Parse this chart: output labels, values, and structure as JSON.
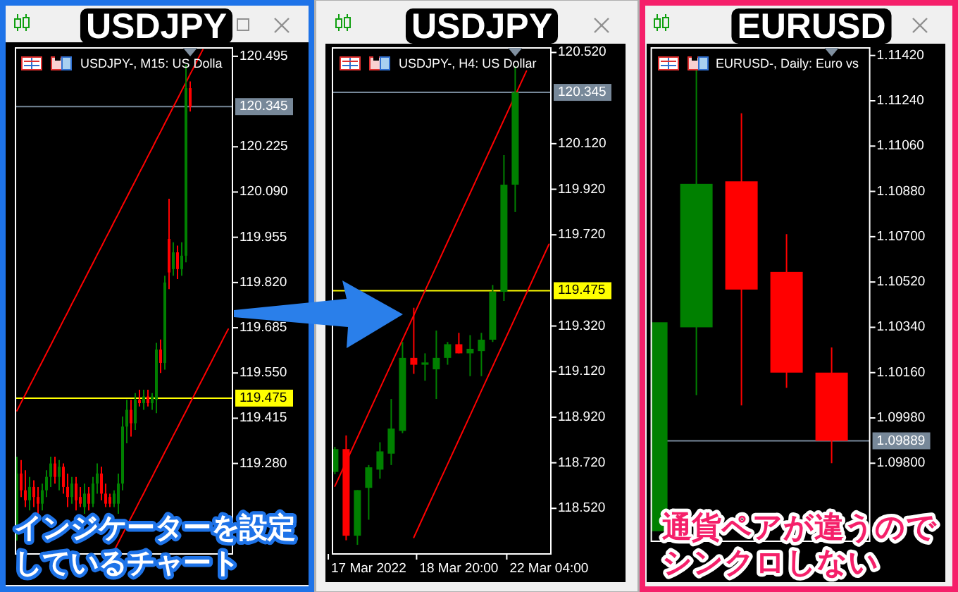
{
  "chart_data": [
    {
      "type": "candlestick",
      "title": "USDJPY",
      "subtitle": "USDJPY-, M15: US Dolla",
      "categories": [
        null,
        null,
        null,
        null,
        null,
        null,
        null,
        null,
        null,
        null,
        null,
        null,
        null,
        null,
        null,
        null,
        null,
        null,
        null,
        null,
        null,
        null,
        null,
        null,
        null,
        null,
        null,
        null,
        null,
        null,
        null,
        null,
        null,
        null,
        null,
        null,
        null,
        null,
        null,
        null,
        null,
        null,
        null,
        null,
        null,
        null,
        null,
        null,
        null,
        null,
        null
      ],
      "ohlc": [
        [
          119.1,
          119.3,
          119.05,
          119.25
        ],
        [
          119.25,
          119.29,
          119.18,
          119.2
        ],
        [
          119.2,
          119.26,
          119.15,
          119.17
        ],
        [
          119.17,
          119.24,
          119.14,
          119.21
        ],
        [
          119.21,
          119.23,
          119.15,
          119.18
        ],
        [
          119.18,
          119.21,
          119.13,
          119.16
        ],
        [
          119.16,
          119.22,
          119.14,
          119.2
        ],
        [
          119.2,
          119.26,
          119.18,
          119.24
        ],
        [
          119.24,
          119.3,
          119.21,
          119.28
        ],
        [
          119.28,
          119.3,
          119.22,
          119.24
        ],
        [
          119.24,
          119.29,
          119.2,
          119.27
        ],
        [
          119.27,
          119.28,
          119.19,
          119.21
        ],
        [
          119.21,
          119.25,
          119.15,
          119.18
        ],
        [
          119.18,
          119.24,
          119.16,
          119.22
        ],
        [
          119.22,
          119.24,
          119.14,
          119.17
        ],
        [
          119.18,
          119.21,
          119.15,
          119.16
        ],
        [
          119.15,
          119.22,
          119.13,
          119.19
        ],
        [
          119.19,
          119.21,
          119.14,
          119.16
        ],
        [
          119.16,
          119.24,
          119.15,
          119.22
        ],
        [
          119.22,
          119.28,
          119.19,
          119.25
        ],
        [
          119.25,
          119.27,
          119.17,
          119.19
        ],
        [
          119.19,
          119.22,
          119.15,
          119.16
        ],
        [
          119.18,
          119.19,
          119.15,
          119.16
        ],
        [
          119.16,
          119.2,
          119.15,
          119.19
        ],
        [
          119.16,
          119.25,
          119.13,
          119.22
        ],
        [
          119.22,
          119.42,
          119.2,
          119.39
        ],
        [
          119.39,
          119.47,
          119.34,
          119.44
        ],
        [
          119.44,
          119.47,
          119.36,
          119.4
        ],
        [
          119.4,
          119.49,
          119.38,
          119.47
        ],
        [
          119.47,
          119.5,
          119.45,
          119.46
        ],
        [
          119.46,
          119.5,
          119.44,
          119.48
        ],
        [
          119.48,
          119.5,
          119.45,
          119.46
        ],
        [
          119.46,
          119.49,
          119.44,
          119.48
        ],
        [
          119.47,
          119.64,
          119.43,
          119.62
        ],
        [
          119.62,
          119.65,
          119.55,
          119.58
        ],
        [
          119.58,
          119.84,
          119.56,
          119.82
        ],
        [
          119.95,
          120.07,
          119.8,
          119.85
        ],
        [
          119.86,
          119.94,
          119.84,
          119.91
        ],
        [
          119.91,
          119.93,
          119.83,
          119.86
        ],
        [
          119.86,
          119.94,
          119.84,
          119.9
        ],
        [
          119.9,
          120.47,
          119.88,
          120.4
        ],
        [
          120.4,
          120.42,
          120.33,
          120.345
        ],
        null,
        null,
        null,
        null,
        null,
        null,
        null,
        null,
        null
      ],
      "colors": [
        "#008000",
        "#ff0000",
        "#ff0000",
        "#008000",
        "#ff0000",
        "#ff0000",
        "#008000",
        "#008000",
        "#008000",
        "#ff0000",
        "#008000",
        "#ff0000",
        "#ff0000",
        "#008000",
        "#ff0000",
        "#ff0000",
        "#008000",
        "#ff0000",
        "#008000",
        "#008000",
        "#ff0000",
        "#ff0000",
        "#ff0000",
        "#008000",
        "#008000",
        "#008000",
        "#008000",
        "#ff0000",
        "#008000",
        "#ff0000",
        "#008000",
        "#ff0000",
        "#008000",
        "#008000",
        "#ff0000",
        "#008000",
        "#ff0000",
        "#008000",
        "#ff0000",
        "#008000",
        "#008000",
        "#ff0000",
        null,
        null,
        null,
        null,
        null,
        null,
        null,
        null,
        null
      ],
      "series": [
        {
          "type": "line",
          "color": "#ff0000",
          "values": [
            119.437,
            119.462,
            119.486,
            119.511,
            119.535,
            119.56,
            119.584,
            119.609,
            119.633,
            119.658,
            119.682,
            119.707,
            119.731,
            119.756,
            119.78,
            119.805,
            119.829,
            119.854,
            119.878,
            119.903,
            119.927,
            119.952,
            119.976,
            120.001,
            120.025,
            120.05,
            120.074,
            120.099,
            120.123,
            120.148,
            120.172,
            120.197,
            120.221,
            120.246,
            120.27,
            120.295,
            120.319,
            120.344,
            120.368,
            120.393,
            120.417,
            120.442,
            120.466,
            120.491,
            120.515,
            null,
            null,
            null,
            null,
            null,
            null
          ]
        },
        {
          "type": "line",
          "color": "#ff0000",
          "values": [
            null,
            null,
            null,
            null,
            null,
            null,
            null,
            null,
            null,
            null,
            null,
            null,
            null,
            null,
            null,
            null,
            null,
            null,
            null,
            null,
            null,
            null,
            null,
            119.02,
            119.044,
            119.069,
            119.093,
            119.118,
            119.142,
            119.167,
            119.191,
            119.216,
            119.24,
            119.265,
            119.289,
            119.314,
            119.338,
            119.363,
            119.387,
            119.412,
            119.436,
            119.461,
            119.485,
            119.51,
            119.534,
            119.559,
            119.583,
            119.608,
            119.632,
            119.657,
            119.681
          ]
        }
      ],
      "ylim": [
        119.01,
        120.52
      ],
      "yticks": [
        120.495,
        120.225,
        {
          "value": 120.09,
          "label": "120.090"
        },
        119.955,
        {
          "value": 119.82,
          "label": "119.820"
        },
        119.685,
        {
          "value": 119.55,
          "label": "119.550"
        },
        119.415,
        {
          "value": 119.28,
          "label": "119.280"
        }
      ],
      "ref_lines": [
        {
          "axis": "y",
          "value": 120.345,
          "label": "120.345",
          "color": "#778899"
        },
        {
          "axis": "y",
          "value": 119.475,
          "label": "119.475",
          "color": "#ffff00"
        }
      ],
      "annotations": [
        "インジケーターを設定",
        "しているチャート"
      ]
    },
    {
      "type": "candlestick",
      "title": "USDJPY",
      "subtitle": "USDJPY-, H4: US Dollar",
      "categories": [
        null,
        null,
        null,
        "17 Mar 2022",
        null,
        null,
        null,
        null,
        null,
        null,
        null,
        "18 Mar 20:00",
        null,
        null,
        null,
        null,
        null,
        null,
        null,
        "22 Mar 04:00"
      ],
      "ohlc": [
        [
          118.68,
          118.79,
          118.67,
          118.78
        ],
        [
          118.78,
          118.84,
          118.38,
          118.4
        ],
        [
          118.4,
          118.6,
          118.36,
          118.6
        ],
        [
          118.61,
          118.71,
          118.47,
          118.7
        ],
        [
          118.69,
          118.81,
          118.65,
          118.77
        ],
        [
          118.76,
          119.0,
          118.71,
          118.87
        ],
        [
          118.86,
          119.25,
          118.85,
          119.18
        ],
        [
          119.18,
          119.4,
          119.11,
          119.15
        ],
        [
          119.15,
          119.2,
          119.08,
          119.16
        ],
        [
          119.13,
          119.3,
          119.0,
          119.18
        ],
        [
          119.18,
          119.25,
          119.15,
          119.24
        ],
        [
          119.24,
          119.29,
          119.2,
          119.2
        ],
        [
          119.2,
          119.28,
          119.1,
          119.22
        ],
        [
          119.21,
          119.29,
          119.1,
          119.26
        ],
        [
          119.26,
          119.5,
          119.25,
          119.47
        ],
        [
          119.47,
          120.07,
          119.43,
          119.94
        ],
        [
          119.94,
          120.46,
          119.82,
          120.345
        ],
        null,
        null,
        null
      ],
      "colors": [
        "#008000",
        "#ff0000",
        "#008000",
        "#008000",
        "#008000",
        "#008000",
        "#008000",
        "#ff0000",
        "#008000",
        "#008000",
        "#008000",
        "#ff0000",
        "#008000",
        "#008000",
        "#008000",
        "#008000",
        "#008000",
        null,
        null,
        null
      ],
      "series": [
        {
          "type": "line",
          "color": "#ff0000",
          "values": [
            118.617,
            118.724,
            118.831,
            118.939,
            119.046,
            119.153,
            119.26,
            119.367,
            119.475,
            119.582,
            119.689,
            119.796,
            119.903,
            120.011,
            120.118,
            120.225,
            120.332,
            120.439,
            null,
            null
          ]
        },
        {
          "type": "line",
          "color": "#ff0000",
          "values": [
            null,
            null,
            null,
            null,
            null,
            null,
            null,
            118.392,
            118.5,
            118.607,
            118.714,
            118.821,
            118.928,
            119.036,
            119.143,
            119.25,
            119.357,
            119.464,
            119.572,
            119.679
          ]
        }
      ],
      "ylim": [
        118.32,
        120.54
      ],
      "yticks": [
        {
          "value": 120.52,
          "label": "120.520"
        },
        {
          "value": 120.12,
          "label": "120.120"
        },
        {
          "value": 119.92,
          "label": "119.920"
        },
        {
          "value": 119.72,
          "label": "119.720"
        },
        {
          "value": 119.32,
          "label": "119.320"
        },
        {
          "value": 119.12,
          "label": "119.120"
        },
        {
          "value": 118.92,
          "label": "118.920"
        },
        {
          "value": 118.72,
          "label": "118.720"
        },
        {
          "value": 118.52,
          "label": "118.520"
        }
      ],
      "ref_lines": [
        {
          "axis": "y",
          "value": 120.345,
          "label": "120.345",
          "color": "#778899"
        },
        {
          "axis": "y",
          "value": 119.475,
          "label": "119.475",
          "color": "#ffff00"
        }
      ]
    },
    {
      "type": "candlestick",
      "title": "EURUSD",
      "subtitle": "EURUSD-, Daily: Euro vs",
      "categories": [
        null,
        null,
        null,
        null,
        null
      ],
      "ohlc": [
        [
          1.0953,
          1.1036,
          1.0953,
          1.1036
        ],
        [
          1.1034,
          1.1137,
          1.1007,
          1.1091
        ],
        [
          1.1092,
          1.1119,
          1.1003,
          1.1049
        ],
        [
          1.1056,
          1.1071,
          1.101,
          1.1016
        ],
        [
          1.1016,
          1.1026,
          1.098,
          1.09889
        ]
      ],
      "colors": [
        "#008000",
        "#008000",
        "#ff0000",
        "#ff0000",
        "#ff0000"
      ],
      "ylim": [
        1.0949,
        1.1145
      ],
      "yticks": [
        {
          "value": 1.1142,
          "label": "1.11420"
        },
        {
          "value": 1.1124,
          "label": "1.11240"
        },
        {
          "value": 1.1106,
          "label": "1.11060"
        },
        {
          "value": 1.1088,
          "label": "1.10880"
        },
        {
          "value": 1.107,
          "label": "1.10700"
        },
        {
          "value": 1.1052,
          "label": "1.10520"
        },
        {
          "value": 1.1034,
          "label": "1.10340"
        },
        {
          "value": 1.1016,
          "label": "1.10160"
        },
        {
          "value": 1.0998,
          "label": "1.09980"
        },
        {
          "value": 1.098,
          "label": "1.09800"
        }
      ],
      "ref_lines": [
        {
          "axis": "y",
          "value": 1.09889,
          "label": "1.09889",
          "color": "#778899"
        }
      ],
      "annotations": [
        "通貨ペアが違うので",
        "シンクロしない"
      ]
    }
  ]
}
